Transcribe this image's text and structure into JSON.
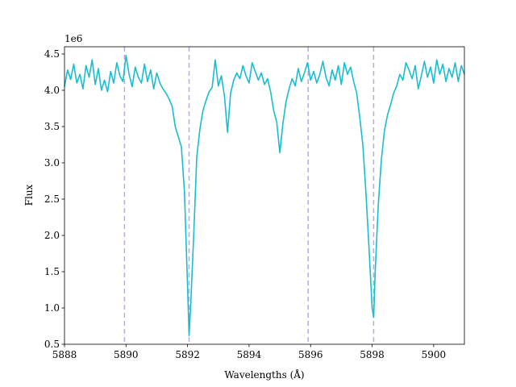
{
  "chart_data": {
    "type": "line",
    "title": "",
    "xlabel": "Wavelengths (Å)",
    "ylabel": "Flux",
    "offset_text": "1e6",
    "xlim": [
      5888,
      5901
    ],
    "ylim": [
      0.5,
      4.6
    ],
    "y_multiplier": 1000000,
    "x_ticks": [
      5888,
      5890,
      5892,
      5894,
      5896,
      5898,
      5900
    ],
    "x_tick_labels": [
      "5888",
      "5890",
      "5892",
      "5894",
      "5896",
      "5898",
      "5900"
    ],
    "y_ticks": [
      0.5,
      1.0,
      1.5,
      2.0,
      2.5,
      3.0,
      3.5,
      4.0,
      4.5
    ],
    "y_tick_labels": [
      "0.5",
      "1.0",
      "1.5",
      "2.0",
      "2.5",
      "3.0",
      "3.5",
      "4.0",
      "4.5"
    ],
    "grid": false,
    "reference_lines": {
      "x": [
        5889.95,
        5892.05,
        5895.92,
        5898.05
      ],
      "color": "#b0b0d8",
      "style": "dashed"
    },
    "series": [
      {
        "color": "#17becf",
        "x": [
          5888.0,
          5888.1,
          5888.2,
          5888.3,
          5888.4,
          5888.5,
          5888.6,
          5888.7,
          5888.8,
          5888.9,
          5889.0,
          5889.1,
          5889.2,
          5889.3,
          5889.4,
          5889.5,
          5889.6,
          5889.7,
          5889.8,
          5889.9,
          5890.0,
          5890.1,
          5890.2,
          5890.3,
          5890.4,
          5890.5,
          5890.6,
          5890.7,
          5890.8,
          5890.9,
          5891.0,
          5891.1,
          5891.2,
          5891.3,
          5891.4,
          5891.5,
          5891.6,
          5891.7,
          5891.8,
          5891.9,
          5892.0,
          5892.05,
          5892.1,
          5892.2,
          5892.3,
          5892.4,
          5892.5,
          5892.6,
          5892.7,
          5892.8,
          5892.9,
          5893.0,
          5893.1,
          5893.2,
          5893.3,
          5893.4,
          5893.5,
          5893.6,
          5893.7,
          5893.8,
          5893.9,
          5894.0,
          5894.1,
          5894.2,
          5894.3,
          5894.4,
          5894.5,
          5894.6,
          5894.7,
          5894.8,
          5894.9,
          5895.0,
          5895.1,
          5895.2,
          5895.3,
          5895.4,
          5895.5,
          5895.6,
          5895.7,
          5895.8,
          5895.9,
          5896.0,
          5896.1,
          5896.2,
          5896.3,
          5896.4,
          5896.5,
          5896.6,
          5896.7,
          5896.8,
          5896.9,
          5897.0,
          5897.1,
          5897.2,
          5897.3,
          5897.4,
          5897.5,
          5897.6,
          5897.7,
          5897.8,
          5897.9,
          5898.0,
          5898.05,
          5898.1,
          5898.2,
          5898.3,
          5898.4,
          5898.5,
          5898.6,
          5898.7,
          5898.8,
          5898.9,
          5899.0,
          5899.1,
          5899.2,
          5899.3,
          5899.4,
          5899.5,
          5899.6,
          5899.7,
          5899.8,
          5899.9,
          5900.0,
          5900.1,
          5900.2,
          5900.3,
          5900.4,
          5900.5,
          5900.6,
          5900.7,
          5900.8,
          5900.9,
          5901.0
        ],
        "y": [
          4.05,
          4.28,
          4.15,
          4.36,
          4.1,
          4.22,
          4.02,
          4.34,
          4.18,
          4.42,
          4.08,
          4.3,
          4.0,
          4.14,
          3.98,
          4.26,
          4.1,
          4.38,
          4.2,
          4.12,
          4.48,
          4.22,
          4.05,
          4.32,
          4.18,
          4.1,
          4.36,
          4.12,
          4.28,
          4.02,
          4.24,
          4.1,
          4.02,
          3.96,
          3.88,
          3.78,
          3.5,
          3.36,
          3.22,
          2.6,
          1.3,
          0.62,
          1.02,
          2.0,
          3.08,
          3.46,
          3.72,
          3.86,
          3.98,
          4.04,
          4.42,
          4.06,
          4.2,
          3.92,
          3.42,
          3.96,
          4.14,
          4.24,
          4.16,
          4.34,
          4.2,
          4.1,
          4.38,
          4.26,
          4.14,
          4.24,
          4.08,
          4.16,
          3.98,
          3.72,
          3.56,
          3.14,
          3.54,
          3.84,
          4.02,
          4.16,
          4.06,
          4.3,
          4.12,
          4.24,
          4.38,
          4.14,
          4.26,
          4.1,
          4.22,
          4.4,
          4.18,
          4.06,
          4.28,
          4.14,
          4.34,
          4.08,
          4.38,
          4.22,
          4.32,
          4.12,
          3.96,
          3.62,
          3.24,
          2.58,
          1.82,
          1.0,
          0.87,
          1.5,
          2.42,
          3.04,
          3.44,
          3.66,
          3.8,
          3.96,
          4.06,
          4.22,
          4.14,
          4.38,
          4.28,
          4.16,
          4.34,
          4.02,
          4.2,
          4.4,
          4.18,
          4.32,
          4.1,
          4.42,
          4.22,
          4.36,
          4.12,
          4.3,
          4.18,
          4.38,
          4.12,
          4.34,
          4.22
        ]
      }
    ]
  }
}
